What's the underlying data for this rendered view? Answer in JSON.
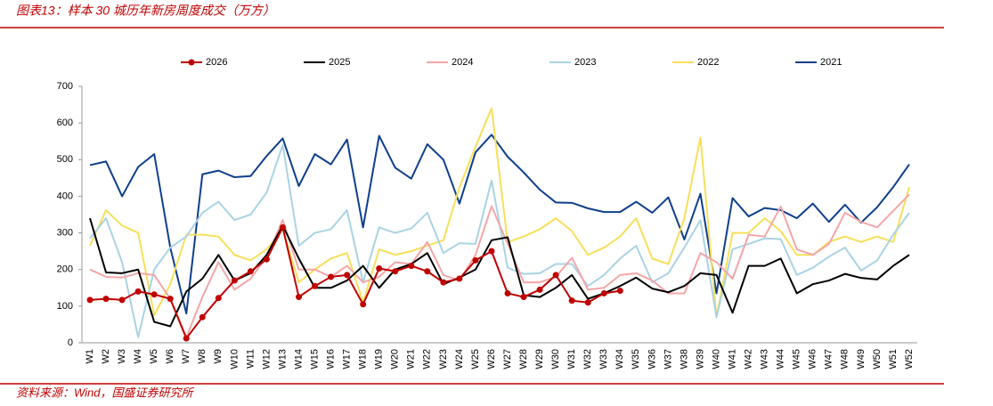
{
  "chart_data": {
    "type": "line",
    "title": "图表13：样本 30 城历年新房周度成交（万方）",
    "source": "资料来源：Wind，国盛证券研究所",
    "categories": [
      "W1",
      "W2",
      "W3",
      "W4",
      "W5",
      "W6",
      "W7",
      "W8",
      "W9",
      "W10",
      "W11",
      "W12",
      "W13",
      "W14",
      "W15",
      "W16",
      "W17",
      "W18",
      "W19",
      "W20",
      "W21",
      "W22",
      "W23",
      "W24",
      "W25",
      "W26",
      "W27",
      "W28",
      "W29",
      "W30",
      "W31",
      "W32",
      "W33",
      "W34",
      "W35",
      "W36",
      "W37",
      "W38",
      "W39",
      "W40",
      "W41",
      "W42",
      "W43",
      "W44",
      "W45",
      "W46",
      "W47",
      "W48",
      "W49",
      "W50",
      "W51",
      "W52"
    ],
    "ylim": [
      0,
      700
    ],
    "yticks": [
      0,
      100,
      200,
      300,
      400,
      500,
      600,
      700
    ],
    "grid": false,
    "legend": "top",
    "series": [
      {
        "name": "2026",
        "color": "#c00000",
        "markers": true,
        "values": [
          117,
          120,
          117,
          140,
          132,
          120,
          12,
          70,
          122,
          170,
          195,
          228,
          315,
          125,
          155,
          180,
          185,
          105,
          203,
          195,
          210,
          195,
          165,
          175,
          225,
          250,
          135,
          125,
          145,
          185,
          115,
          110,
          135,
          142,
          null,
          null,
          null,
          null,
          null,
          null,
          null,
          null,
          null,
          null,
          null,
          null,
          null,
          null,
          null,
          null,
          null,
          null
        ]
      },
      {
        "name": "2025",
        "color": "#000000",
        "markers": false,
        "values": [
          340,
          192,
          190,
          200,
          57,
          45,
          140,
          175,
          240,
          170,
          190,
          240,
          320,
          230,
          150,
          150,
          170,
          210,
          150,
          200,
          215,
          245,
          160,
          178,
          200,
          280,
          288,
          130,
          125,
          150,
          185,
          120,
          135,
          155,
          178,
          148,
          138,
          155,
          190,
          185,
          82,
          210,
          210,
          230,
          135,
          160,
          170,
          188,
          177,
          173,
          210,
          240
        ]
      },
      {
        "name": "2024",
        "color": "#f4a6a6",
        "markers": false,
        "values": [
          200,
          180,
          178,
          190,
          185,
          120,
          15,
          125,
          220,
          145,
          175,
          235,
          335,
          200,
          200,
          180,
          210,
          165,
          180,
          220,
          215,
          275,
          185,
          170,
          240,
          373,
          270,
          165,
          165,
          180,
          232,
          145,
          150,
          185,
          190,
          170,
          135,
          135,
          245,
          220,
          175,
          295,
          290,
          372,
          255,
          240,
          270,
          355,
          330,
          315,
          360,
          405
        ]
      },
      {
        "name": "2023",
        "color": "#a9d3e4",
        "markers": false,
        "values": [
          285,
          340,
          220,
          15,
          200,
          260,
          290,
          355,
          385,
          335,
          350,
          410,
          540,
          265,
          300,
          310,
          362,
          165,
          315,
          300,
          312,
          355,
          245,
          272,
          270,
          443,
          205,
          188,
          190,
          215,
          215,
          155,
          185,
          230,
          265,
          165,
          190,
          260,
          335,
          70,
          255,
          270,
          285,
          283,
          185,
          205,
          235,
          260,
          197,
          225,
          295,
          355
        ]
      },
      {
        "name": "2022",
        "color": "#f7df5a",
        "markers": false,
        "values": [
          265,
          362,
          320,
          300,
          75,
          160,
          295,
          295,
          290,
          240,
          225,
          255,
          310,
          165,
          200,
          230,
          245,
          110,
          255,
          240,
          250,
          265,
          280,
          425,
          535,
          640,
          275,
          290,
          310,
          340,
          305,
          240,
          260,
          290,
          340,
          230,
          215,
          340,
          560,
          70,
          300,
          300,
          340,
          305,
          240,
          240,
          275,
          290,
          275,
          290,
          275,
          425
        ]
      },
      {
        "name": "2021",
        "color": "#0e3f8c",
        "markers": false,
        "values": [
          485,
          495,
          400,
          480,
          515,
          260,
          80,
          460,
          470,
          452,
          455,
          510,
          558,
          428,
          515,
          487,
          555,
          315,
          565,
          478,
          448,
          542,
          500,
          380,
          520,
          568,
          508,
          465,
          418,
          383,
          382,
          367,
          357,
          357,
          385,
          355,
          397,
          282,
          407,
          135,
          395,
          345,
          368,
          362,
          340,
          380,
          330,
          377,
          328,
          370,
          425,
          487
        ]
      }
    ]
  }
}
